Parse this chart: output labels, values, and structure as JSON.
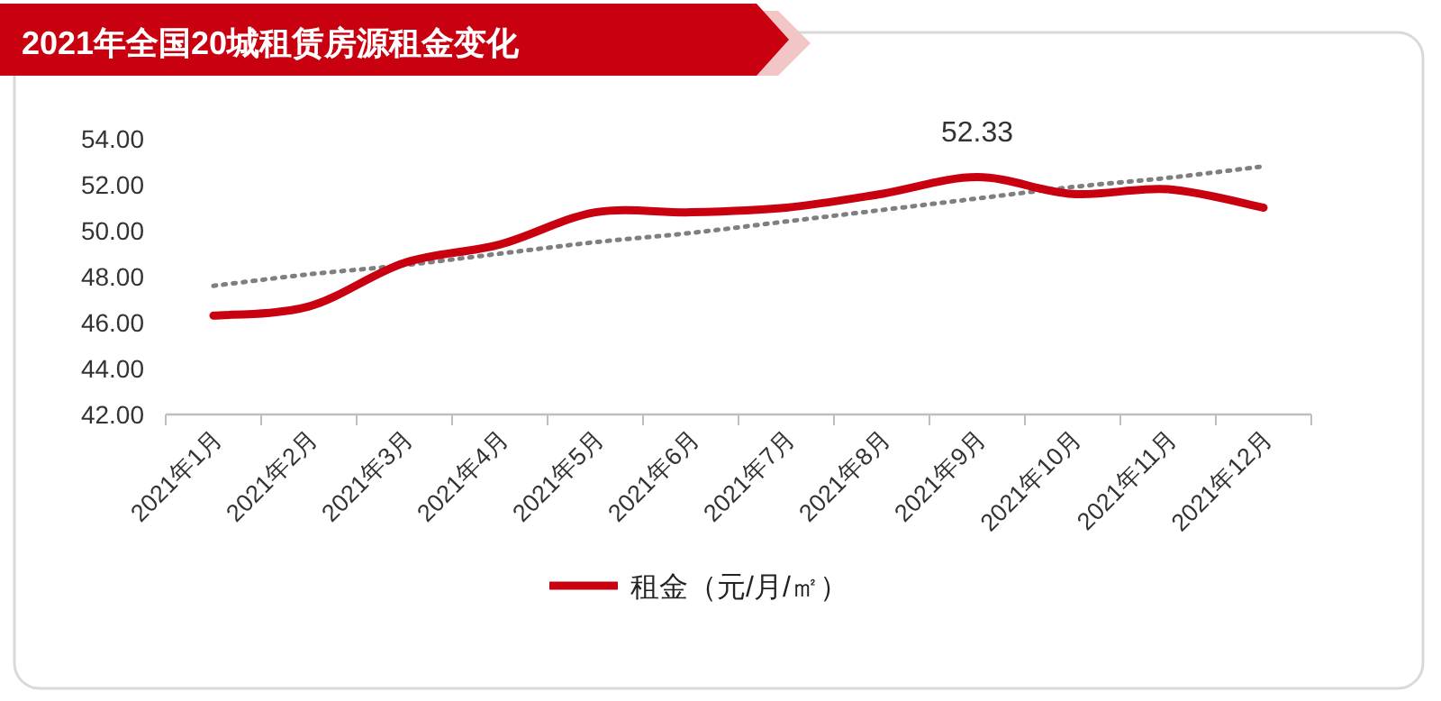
{
  "chart_data": {
    "type": "line",
    "title": "2021年全国20城租赁房源租金变化",
    "categories": [
      "2021年1月",
      "2021年2月",
      "2021年3月",
      "2021年4月",
      "2021年5月",
      "2021年6月",
      "2021年7月",
      "2021年8月",
      "2021年9月",
      "2021年10月",
      "2021年11月",
      "2021年12月"
    ],
    "series": [
      {
        "name": "租金（元/月/㎡）",
        "color": "#c8000f",
        "values": [
          46.3,
          46.7,
          48.6,
          49.4,
          50.8,
          50.8,
          51.0,
          51.6,
          52.33,
          51.6,
          51.8,
          51.0
        ],
        "value_labels": [
          null,
          null,
          null,
          null,
          null,
          null,
          null,
          null,
          "52.33",
          null,
          null,
          null
        ]
      },
      {
        "type": "line",
        "color": "#7f7f7f",
        "line_style": "dotted",
        "values": [
          47.6,
          48.1,
          48.5,
          49.0,
          49.5,
          49.9,
          50.4,
          50.9,
          51.4,
          51.9,
          52.3,
          52.8
        ]
      }
    ],
    "ylim": [
      42,
      54
    ],
    "yticks": [
      {
        "value": 42,
        "label": "42.00"
      },
      {
        "value": 44,
        "label": "44.00"
      },
      {
        "value": 46,
        "label": "46.00"
      },
      {
        "value": 48,
        "label": "48.00"
      },
      {
        "value": 50,
        "label": "50.00"
      },
      {
        "value": 52,
        "label": "52.00"
      },
      {
        "value": 54,
        "label": "54.00"
      }
    ],
    "grid": false,
    "legend": "bottom",
    "marker": "none",
    "line_style": "solid"
  }
}
